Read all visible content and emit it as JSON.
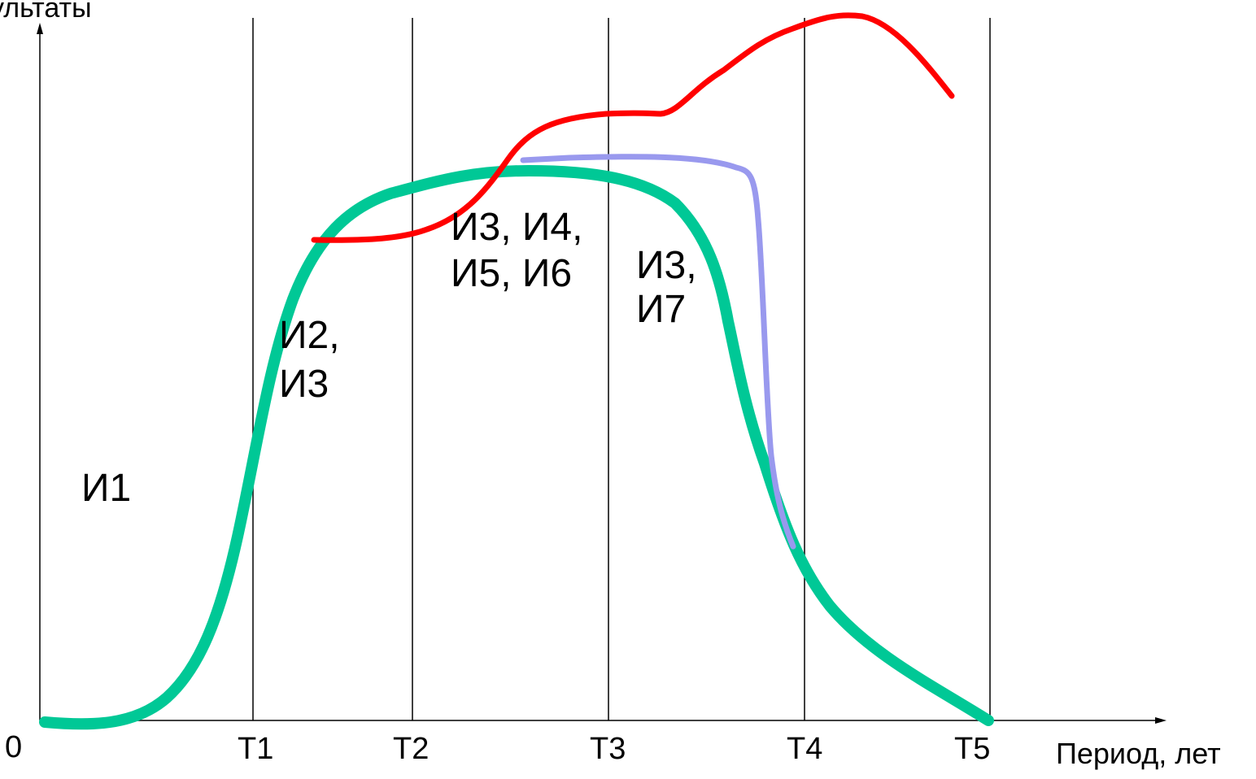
{
  "axes": {
    "y_label": "ультаты",
    "x_label": "Период, лет",
    "origin": "0"
  },
  "x_ticks": [
    "T1",
    "T2",
    "T3",
    "T4",
    "T5"
  ],
  "stage_labels": {
    "i1": "И1",
    "i2_i3": [
      "И2,",
      "И3"
    ],
    "i3_i6": [
      "И3, И4,",
      "И5, И6"
    ],
    "i3_i7": [
      "И3,",
      "И7"
    ]
  },
  "curves": [
    {
      "id": "green",
      "color": "#00c896"
    },
    {
      "id": "red",
      "color": "#ff0000"
    },
    {
      "id": "lavender",
      "color": "#9999ee"
    }
  ]
}
